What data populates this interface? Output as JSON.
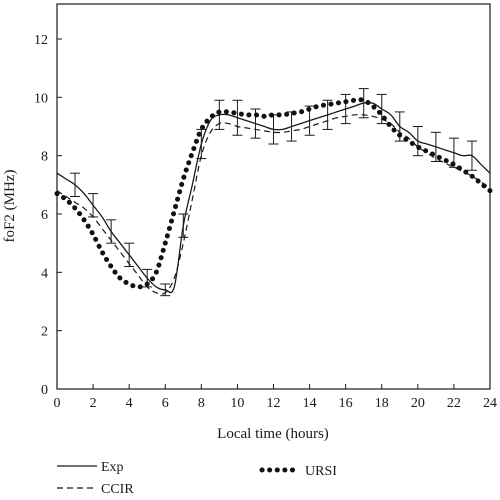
{
  "chart_data": {
    "type": "line",
    "xlabel": "Local time (hours)",
    "ylabel": "foF2 (MHz)",
    "xlim": [
      0,
      24
    ],
    "ylim": [
      0,
      13.2
    ],
    "x_ticks": [
      "0",
      "2",
      "4",
      "6",
      "8",
      "10",
      "12",
      "14",
      "16",
      "18",
      "20",
      "22",
      "24"
    ],
    "y_ticks": [
      "0",
      "2",
      "4",
      "6",
      "8",
      "10",
      "12"
    ],
    "grid": false,
    "legend_position": "bottom",
    "series": [
      {
        "name": "Exp",
        "style": "solid",
        "color": "#1a1a1a",
        "x": [
          0,
          0.5,
          1,
          1.5,
          2,
          2.5,
          3,
          3.5,
          4,
          4.5,
          5,
          5.5,
          6,
          6.5,
          7,
          7.5,
          8,
          8.5,
          9,
          9.5,
          10,
          10.5,
          11,
          11.5,
          12,
          12.5,
          13,
          13.5,
          14,
          14.5,
          15,
          15.5,
          16,
          16.5,
          17,
          17.5,
          18,
          18.5,
          19,
          19.5,
          20,
          20.5,
          21,
          21.5,
          22,
          22.5,
          23,
          23.5,
          24
        ],
        "y": [
          7.4,
          7.2,
          7.0,
          6.7,
          6.3,
          5.9,
          5.4,
          5.0,
          4.6,
          4.2,
          3.8,
          3.5,
          3.4,
          3.5,
          5.6,
          7.0,
          8.4,
          9.2,
          9.4,
          9.4,
          9.3,
          9.2,
          9.1,
          9.0,
          8.9,
          8.9,
          9.0,
          9.1,
          9.2,
          9.3,
          9.4,
          9.5,
          9.6,
          9.7,
          9.8,
          9.8,
          9.6,
          9.4,
          9.0,
          8.8,
          8.5,
          8.4,
          8.3,
          8.2,
          8.1,
          8.0,
          8.0,
          7.7,
          7.4
        ]
      },
      {
        "name": "CCIR",
        "style": "dashed",
        "color": "#1a1a1a",
        "x": [
          0,
          0.5,
          1,
          1.5,
          2,
          2.5,
          3,
          3.5,
          4,
          4.5,
          5,
          5.5,
          6,
          6.5,
          7,
          7.5,
          8,
          8.5,
          9,
          9.5,
          10,
          10.5,
          11,
          11.5,
          12,
          12.5,
          13,
          13.5,
          14,
          14.5,
          15,
          15.5,
          16,
          16.5,
          17,
          17.5,
          18,
          18.5,
          19,
          19.5,
          20,
          20.5,
          21,
          21.5,
          22,
          22.5,
          23,
          23.5,
          24
        ],
        "y": [
          6.8,
          6.6,
          6.4,
          6.2,
          5.9,
          5.5,
          5.1,
          4.7,
          4.3,
          3.9,
          3.5,
          3.3,
          3.3,
          3.8,
          5.0,
          6.5,
          8.0,
          8.8,
          9.1,
          9.1,
          9.0,
          8.95,
          8.9,
          8.85,
          8.8,
          8.8,
          8.85,
          8.9,
          9.0,
          9.1,
          9.2,
          9.3,
          9.35,
          9.4,
          9.4,
          9.35,
          9.25,
          9.1,
          8.8,
          8.6,
          8.3,
          8.1,
          7.9,
          7.75,
          7.6,
          7.45,
          7.3,
          7.1,
          6.9
        ]
      },
      {
        "name": "URSI",
        "style": "dotted",
        "color": "#111111",
        "x": [
          0,
          0.5,
          1,
          1.5,
          2,
          2.5,
          3,
          3.5,
          4,
          4.5,
          5,
          5.5,
          6,
          6.5,
          7,
          7.5,
          8,
          8.5,
          9,
          9.5,
          10,
          10.5,
          11,
          11.5,
          12,
          12.5,
          13,
          13.5,
          14,
          14.5,
          15,
          15.5,
          16,
          16.5,
          17,
          17.5,
          18,
          18.5,
          19,
          19.5,
          20,
          20.5,
          21,
          21.5,
          22,
          22.5,
          23,
          23.5,
          24
        ],
        "y": [
          6.7,
          6.5,
          6.2,
          5.8,
          5.3,
          4.7,
          4.2,
          3.8,
          3.6,
          3.5,
          3.6,
          4.0,
          5.0,
          6.1,
          7.2,
          8.1,
          8.9,
          9.3,
          9.5,
          9.5,
          9.45,
          9.4,
          9.4,
          9.35,
          9.4,
          9.4,
          9.45,
          9.5,
          9.6,
          9.7,
          9.75,
          9.8,
          9.85,
          9.9,
          9.9,
          9.7,
          9.4,
          9.0,
          8.7,
          8.5,
          8.3,
          8.15,
          8.0,
          7.85,
          7.7,
          7.5,
          7.3,
          7.05,
          6.8
        ]
      }
    ],
    "error_bars": {
      "series": "Exp",
      "x": [
        1,
        2,
        3,
        4,
        5,
        6,
        7,
        8,
        9,
        10,
        11,
        12,
        13,
        14,
        15,
        16,
        17,
        18,
        19,
        20,
        21,
        22,
        23
      ],
      "y": [
        7.0,
        6.3,
        5.4,
        4.6,
        3.8,
        3.4,
        5.6,
        8.4,
        9.4,
        9.3,
        9.1,
        8.9,
        9.0,
        9.2,
        9.4,
        9.6,
        9.8,
        9.6,
        9.0,
        8.5,
        8.3,
        8.1,
        8.0
      ],
      "err": [
        0.4,
        0.4,
        0.4,
        0.4,
        0.3,
        0.2,
        0.4,
        0.5,
        0.5,
        0.6,
        0.5,
        0.5,
        0.5,
        0.5,
        0.5,
        0.5,
        0.5,
        0.5,
        0.5,
        0.5,
        0.5,
        0.5,
        0.5
      ]
    }
  }
}
